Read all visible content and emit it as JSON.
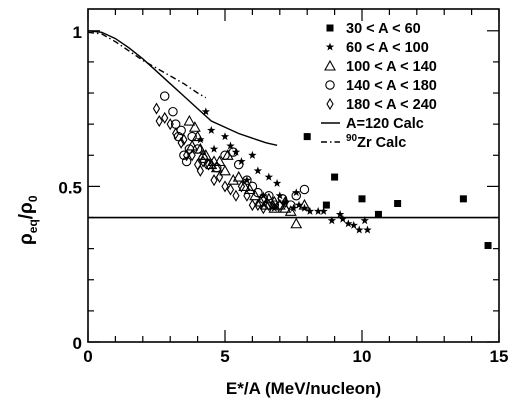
{
  "chart_data": {
    "type": "scatter",
    "xlabel": "E*/A (MeV/nucleon)",
    "ylabel": {
      "base1": "ρ",
      "sub1": "eq",
      "slash": "/",
      "base2": "ρ",
      "sub2": "0"
    },
    "xlim": [
      0,
      15
    ],
    "ylim": [
      0,
      1.07
    ],
    "x_ticks": [
      0,
      5,
      10,
      15
    ],
    "y_ticks": [
      0,
      0.5,
      1
    ],
    "x_tick_labels": [
      "0",
      "5",
      "10",
      "15"
    ],
    "y_tick_labels": [
      "0",
      "0.5",
      "1"
    ],
    "legend_position": "top-right",
    "grid": false,
    "reference_line": {
      "y": 0.4
    },
    "series": [
      {
        "name": "30 < A < 60",
        "marker": "filled-square",
        "points": [
          [
            8.0,
            0.66
          ],
          [
            8.7,
            0.44
          ],
          [
            9.0,
            0.53
          ],
          [
            10.0,
            0.46
          ],
          [
            10.6,
            0.41
          ],
          [
            11.3,
            0.445
          ],
          [
            13.7,
            0.46
          ],
          [
            14.6,
            0.31
          ]
        ]
      },
      {
        "name": "60 < A < 100",
        "marker": "star",
        "points": [
          [
            4.3,
            0.74
          ],
          [
            4.5,
            0.68
          ],
          [
            4.1,
            0.65
          ],
          [
            5.0,
            0.66
          ],
          [
            5.2,
            0.63
          ],
          [
            5.4,
            0.61
          ],
          [
            5.6,
            0.58
          ],
          [
            4.6,
            0.62
          ],
          [
            6.0,
            0.6
          ],
          [
            6.2,
            0.55
          ],
          [
            6.6,
            0.53
          ],
          [
            6.9,
            0.51
          ],
          [
            5.8,
            0.52
          ],
          [
            7.0,
            0.47
          ],
          [
            7.2,
            0.45
          ],
          [
            7.5,
            0.43
          ],
          [
            7.6,
            0.48
          ],
          [
            7.7,
            0.44
          ],
          [
            7.9,
            0.43
          ],
          [
            8.1,
            0.42
          ],
          [
            8.4,
            0.42
          ],
          [
            8.6,
            0.42
          ],
          [
            8.9,
            0.39
          ],
          [
            9.2,
            0.41
          ],
          [
            9.5,
            0.38
          ],
          [
            9.3,
            0.395
          ],
          [
            9.7,
            0.375
          ],
          [
            9.9,
            0.36
          ],
          [
            10.1,
            0.39
          ],
          [
            10.2,
            0.36
          ],
          [
            6.8,
            0.43
          ],
          [
            6.4,
            0.47
          ]
        ]
      },
      {
        "name": "100 < A < 140",
        "marker": "open-triangle",
        "points": [
          [
            3.7,
            0.71
          ],
          [
            3.9,
            0.69
          ],
          [
            4.0,
            0.66
          ],
          [
            3.8,
            0.63
          ],
          [
            4.1,
            0.62
          ],
          [
            4.3,
            0.6
          ],
          [
            4.5,
            0.57
          ],
          [
            4.7,
            0.56
          ],
          [
            4.8,
            0.58
          ],
          [
            5.0,
            0.55
          ],
          [
            4.6,
            0.58
          ],
          [
            5.3,
            0.52
          ],
          [
            5.5,
            0.53
          ],
          [
            5.7,
            0.5
          ],
          [
            5.9,
            0.49
          ],
          [
            6.1,
            0.47
          ],
          [
            6.3,
            0.45
          ],
          [
            6.5,
            0.44
          ],
          [
            6.6,
            0.46
          ],
          [
            6.8,
            0.43
          ],
          [
            7.0,
            0.44
          ],
          [
            7.2,
            0.43
          ],
          [
            7.4,
            0.42
          ],
          [
            7.6,
            0.38
          ],
          [
            7.9,
            0.44
          ],
          [
            4.2,
            0.6
          ],
          [
            5.1,
            0.6
          ]
        ]
      },
      {
        "name": "140 < A < 180",
        "marker": "open-circle",
        "points": [
          [
            2.8,
            0.79
          ],
          [
            3.1,
            0.74
          ],
          [
            3.2,
            0.7
          ],
          [
            3.4,
            0.68
          ],
          [
            3.3,
            0.66
          ],
          [
            3.5,
            0.6
          ],
          [
            3.6,
            0.58
          ],
          [
            3.8,
            0.66
          ],
          [
            4.0,
            0.62
          ],
          [
            4.2,
            0.59
          ],
          [
            4.4,
            0.57
          ],
          [
            4.7,
            0.56
          ],
          [
            5.0,
            0.6
          ],
          [
            5.3,
            0.61
          ],
          [
            5.5,
            0.57
          ],
          [
            5.8,
            0.52
          ],
          [
            6.0,
            0.5
          ],
          [
            6.2,
            0.48
          ],
          [
            6.4,
            0.46
          ],
          [
            6.6,
            0.47
          ],
          [
            6.8,
            0.44
          ],
          [
            7.1,
            0.46
          ],
          [
            7.4,
            0.44
          ],
          [
            7.6,
            0.47
          ],
          [
            7.9,
            0.49
          ],
          [
            3.7,
            0.62
          ]
        ]
      },
      {
        "name": "180 < A < 240",
        "marker": "open-diamond",
        "points": [
          [
            2.5,
            0.75
          ],
          [
            2.6,
            0.71
          ],
          [
            2.8,
            0.72
          ],
          [
            3.0,
            0.7
          ],
          [
            3.2,
            0.67
          ],
          [
            3.4,
            0.64
          ],
          [
            3.6,
            0.6
          ],
          [
            3.8,
            0.6
          ],
          [
            4.0,
            0.57
          ],
          [
            4.2,
            0.58
          ],
          [
            4.4,
            0.57
          ],
          [
            4.6,
            0.52
          ],
          [
            4.8,
            0.53
          ],
          [
            5.0,
            0.5
          ],
          [
            5.2,
            0.49
          ],
          [
            5.4,
            0.47
          ],
          [
            5.6,
            0.5
          ],
          [
            5.8,
            0.47
          ],
          [
            6.0,
            0.44
          ],
          [
            6.2,
            0.44
          ],
          [
            6.4,
            0.43
          ],
          [
            6.6,
            0.44
          ],
          [
            6.8,
            0.45
          ],
          [
            7.0,
            0.44
          ],
          [
            7.2,
            0.45
          ],
          [
            3.5,
            0.65
          ],
          [
            4.1,
            0.55
          ]
        ]
      },
      {
        "name": "A=120 Calc",
        "marker": "solid-line",
        "points": [
          [
            0,
            1.0
          ],
          [
            0.5,
            0.995
          ],
          [
            1.0,
            0.975
          ],
          [
            1.5,
            0.945
          ],
          [
            2.0,
            0.91
          ],
          [
            2.5,
            0.87
          ],
          [
            3.0,
            0.83
          ],
          [
            3.5,
            0.79
          ],
          [
            4.0,
            0.75
          ],
          [
            4.5,
            0.71
          ],
          [
            5.0,
            0.69
          ],
          [
            5.5,
            0.67
          ],
          [
            6.0,
            0.655
          ],
          [
            6.5,
            0.64
          ],
          [
            6.9,
            0.632
          ]
        ]
      },
      {
        "name_prefix": "90",
        "name": "Zr Calc",
        "marker": "dash-dot-line",
        "points": [
          [
            0,
            0.995
          ],
          [
            0.5,
            0.99
          ],
          [
            1.0,
            0.965
          ],
          [
            1.5,
            0.935
          ],
          [
            2.0,
            0.905
          ],
          [
            2.5,
            0.88
          ],
          [
            3.0,
            0.855
          ],
          [
            3.5,
            0.83
          ],
          [
            4.0,
            0.8
          ],
          [
            4.3,
            0.785
          ]
        ]
      }
    ]
  }
}
